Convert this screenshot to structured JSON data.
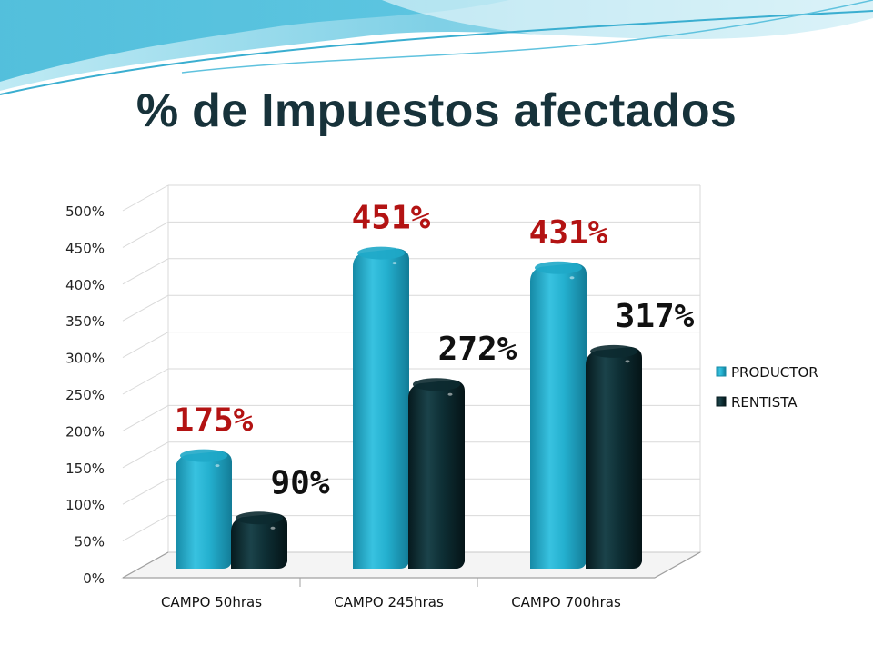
{
  "slide": {
    "title": "% de Impuestos afectados"
  },
  "colors": {
    "productor": "#1fa9c8",
    "rentista": "#0c2a30",
    "label_productor": "#b31313",
    "label_rentista": "#111111",
    "title": "#17323a",
    "wave_light": "#8fd7ea",
    "wave_mid": "#41b9d8"
  },
  "chart_data": {
    "type": "bar",
    "title": "",
    "xlabel": "",
    "ylabel": "",
    "categories": [
      "CAMPO 50hras",
      "CAMPO 245hras",
      "CAMPO 700hras"
    ],
    "series": [
      {
        "name": "PRODUCTOR",
        "values": [
          175,
          451,
          431
        ],
        "labels": [
          "175%",
          "451%",
          "431%"
        ]
      },
      {
        "name": "RENTISTA",
        "values": [
          90,
          272,
          317
        ],
        "labels": [
          "90%",
          "272%",
          "317%"
        ]
      }
    ],
    "yticks": [
      "0%",
      "50%",
      "100%",
      "150%",
      "200%",
      "250%",
      "300%",
      "350%",
      "400%",
      "450%",
      "500%"
    ],
    "ylim": [
      0,
      500
    ],
    "unit": "%",
    "grid": true,
    "legend": "right",
    "style": "3d-cylinder-columns"
  }
}
